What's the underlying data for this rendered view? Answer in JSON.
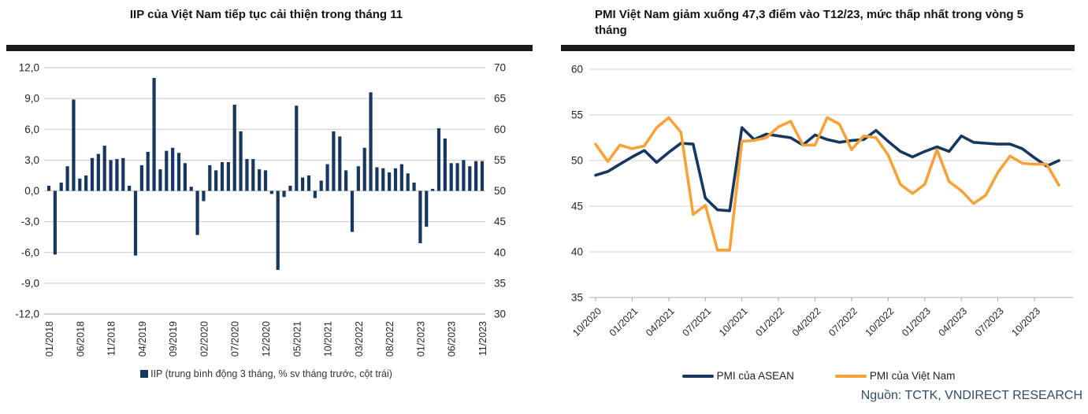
{
  "left_chart": {
    "title": "IIP của Việt Nam tiếp tục cải thiện trong tháng 11",
    "legend_label": "IIP (trung bình động 3 tháng, % sv tháng trước, cột trái)"
  },
  "right_chart": {
    "title": "PMI Việt Nam giảm xuống 47,3 điểm vào T12/23, mức thấp nhất trong vòng 5 tháng",
    "legend": [
      {
        "label": "PMI của ASEAN",
        "color": "#17375E"
      },
      {
        "label": "PMI của Việt Nam",
        "color": "#F7A239"
      }
    ],
    "source": "Nguồn: TCTK, VNDIRECT RESEARCH"
  },
  "colors": {
    "navy": "#17375E",
    "orange": "#F7A239",
    "title_bar": "#1B1B1B",
    "source_text": "#2F4D68",
    "gridline": "#C9C9C9",
    "axis_text": "#262626"
  },
  "chart_data": [
    {
      "type": "bar",
      "title": "IIP của Việt Nam tiếp tục cải thiện trong tháng 11",
      "series_name": "IIP (trung bình động 3 tháng, % sv tháng trước, cột trái)",
      "bar_color": "#17375E",
      "grid": true,
      "ylim_left": [
        -12,
        12
      ],
      "ylim_right": [
        30,
        70
      ],
      "ytick_values": [
        12,
        9,
        6,
        3,
        0,
        -3,
        -6,
        -9,
        -12
      ],
      "ytick_labels_left": [
        "12,0",
        "9,0",
        "6,0",
        "3,0",
        "0,0",
        "-3,0",
        "-6,0",
        "-9,0",
        "-12,0"
      ],
      "ytick_labels_right": [
        "70",
        "65",
        "60",
        "55",
        "50",
        "45",
        "40",
        "35",
        "30"
      ],
      "xtick_every": 5,
      "categories": [
        "01/2018",
        "02/2018",
        "03/2018",
        "04/2018",
        "05/2018",
        "06/2018",
        "07/2018",
        "08/2018",
        "09/2018",
        "10/2018",
        "11/2018",
        "12/2018",
        "01/2019",
        "02/2019",
        "03/2019",
        "04/2019",
        "05/2019",
        "06/2019",
        "07/2019",
        "08/2019",
        "09/2019",
        "10/2019",
        "11/2019",
        "12/2019",
        "01/2020",
        "02/2020",
        "03/2020",
        "04/2020",
        "05/2020",
        "06/2020",
        "07/2020",
        "08/2020",
        "09/2020",
        "10/2020",
        "11/2020",
        "12/2020",
        "01/2021",
        "02/2021",
        "03/2021",
        "04/2021",
        "05/2021",
        "06/2021",
        "07/2021",
        "08/2021",
        "09/2021",
        "10/2021",
        "11/2021",
        "12/2021",
        "01/2022",
        "02/2022",
        "03/2022",
        "04/2022",
        "05/2022",
        "06/2022",
        "07/2022",
        "08/2022",
        "09/2022",
        "10/2022",
        "11/2022",
        "12/2022",
        "01/2023",
        "02/2023",
        "03/2023",
        "04/2023",
        "05/2023",
        "06/2023",
        "07/2023",
        "08/2023",
        "09/2023",
        "10/2023",
        "11/2023"
      ],
      "values": [
        0.5,
        -6.2,
        0.8,
        2.4,
        8.9,
        1.2,
        1.5,
        3.2,
        3.6,
        4.4,
        3.0,
        3.1,
        3.2,
        0.5,
        -6.3,
        2.5,
        3.8,
        11.0,
        2.1,
        3.9,
        4.2,
        3.7,
        2.7,
        0.4,
        -4.3,
        -1.0,
        2.5,
        2.0,
        2.8,
        2.8,
        8.4,
        5.8,
        3.1,
        3.1,
        2.1,
        2.0,
        -0.3,
        -7.7,
        -0.6,
        0.5,
        8.3,
        1.3,
        1.5,
        -0.7,
        1.0,
        2.6,
        5.8,
        5.3,
        2.0,
        -4.0,
        2.4,
        4.2,
        9.6,
        2.3,
        2.2,
        1.8,
        2.2,
        2.6,
        1.7,
        0.8,
        -5.1,
        -3.5,
        0.2,
        6.1,
        5.1,
        2.7,
        2.7,
        3.0,
        2.4,
        2.9,
        2.9
      ]
    },
    {
      "type": "line",
      "title": "PMI Việt Nam giảm xuống 47,3 điểm vào T12/23, mức thấp nhất trong vòng 5 tháng",
      "grid": true,
      "legend_position": "bottom",
      "ylim": [
        35,
        60
      ],
      "ytick_values": [
        60,
        55,
        50,
        45,
        40,
        35
      ],
      "xtick_every": 3,
      "x": [
        "10/2020",
        "11/2020",
        "12/2020",
        "01/2021",
        "02/2021",
        "03/2021",
        "04/2021",
        "05/2021",
        "06/2021",
        "07/2021",
        "08/2021",
        "09/2021",
        "10/2021",
        "11/2021",
        "12/2021",
        "01/2022",
        "02/2022",
        "03/2022",
        "04/2022",
        "05/2022",
        "06/2022",
        "07/2022",
        "08/2022",
        "09/2022",
        "10/2022",
        "11/2022",
        "12/2022",
        "01/2023",
        "02/2023",
        "03/2023",
        "04/2023",
        "05/2023",
        "06/2023",
        "07/2023",
        "08/2023",
        "09/2023",
        "10/2023",
        "11/2023",
        "12/2023"
      ],
      "series": [
        {
          "name": "PMI của ASEAN",
          "color": "#17375E",
          "values": [
            48.4,
            48.8,
            49.6,
            50.4,
            51.1,
            49.8,
            50.9,
            51.9,
            51.8,
            45.9,
            44.6,
            44.5,
            53.6,
            52.3,
            52.9,
            52.7,
            52.5,
            51.7,
            52.8,
            52.3,
            52.0,
            52.2,
            52.3,
            53.3,
            52.1,
            51.0,
            50.4,
            51.0,
            51.5,
            51.0,
            52.7,
            52.0,
            51.9,
            51.8,
            51.8,
            51.3,
            50.3,
            49.4,
            50.0
          ]
        },
        {
          "name": "PMI của Việt Nam",
          "color": "#F7A239",
          "values": [
            51.8,
            49.9,
            51.7,
            51.3,
            51.6,
            53.6,
            54.7,
            53.1,
            44.1,
            45.1,
            40.2,
            40.2,
            52.1,
            52.2,
            52.5,
            53.7,
            54.3,
            51.7,
            51.7,
            54.7,
            54.0,
            51.2,
            52.7,
            52.5,
            50.6,
            47.4,
            46.4,
            47.4,
            51.2,
            47.7,
            46.7,
            45.3,
            46.2,
            48.7,
            50.5,
            49.7,
            49.6,
            49.6,
            47.3
          ]
        }
      ]
    }
  ]
}
